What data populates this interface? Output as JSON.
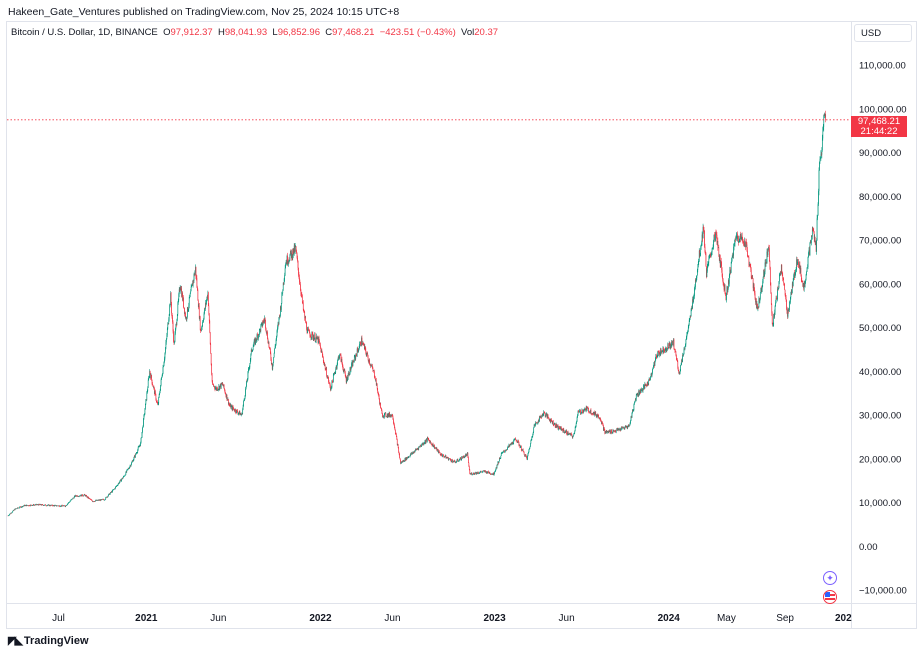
{
  "header": {
    "publisher": "Hakeen_Gate_Ventures published on TradingView.com, Nov 25, 2024 10:15 UTC+8"
  },
  "legend": {
    "symbol": "Bitcoin / U.S. Dollar, 1D, BINANCE",
    "o_label": "O",
    "o_value": "97,912.37",
    "h_label": "H",
    "h_value": "98,041.93",
    "l_label": "L",
    "l_value": "96,852.96",
    "c_label": "C",
    "c_value": "97,468.21",
    "change": "−423.51 (−0.43%)",
    "vol_label": "Vol",
    "vol_value": "20.37"
  },
  "currency_button": "USD",
  "last_price": {
    "value": "97,468.21",
    "countdown": "21:44:22"
  },
  "branding": {
    "logo_text": "TradingView"
  },
  "colors": {
    "up": "#089981",
    "down": "#f23645",
    "grid": "#e0e3eb",
    "price_line": "#f23645"
  },
  "chart_data": {
    "type": "candlestick",
    "ylim": [
      -15000,
      115000
    ],
    "y_ticks": [
      {
        "value": 110000,
        "label": "110,000.00"
      },
      {
        "value": 100000,
        "label": "100,000.00"
      },
      {
        "value": 90000,
        "label": "90,000.00"
      },
      {
        "value": 80000,
        "label": "80,000.00"
      },
      {
        "value": 70000,
        "label": "70,000.00"
      },
      {
        "value": 60000,
        "label": "60,000.00"
      },
      {
        "value": 50000,
        "label": "50,000.00"
      },
      {
        "value": 40000,
        "label": "40,000.00"
      },
      {
        "value": 30000,
        "label": "30,000.00"
      },
      {
        "value": 20000,
        "label": "20,000.00"
      },
      {
        "value": 10000,
        "label": "10,000.00"
      },
      {
        "value": 0,
        "label": "0.00"
      },
      {
        "value": -10000,
        "label": "−10,000.00"
      }
    ],
    "x_ticks": [
      {
        "date": "2020-07-01",
        "label": "Jul",
        "bold": false
      },
      {
        "date": "2021-01-01",
        "label": "2021",
        "bold": true
      },
      {
        "date": "2021-06-01",
        "label": "Jun",
        "bold": false
      },
      {
        "date": "2022-01-01",
        "label": "2022",
        "bold": true
      },
      {
        "date": "2022-06-01",
        "label": "Jun",
        "bold": false
      },
      {
        "date": "2023-01-01",
        "label": "2023",
        "bold": true
      },
      {
        "date": "2023-06-01",
        "label": "Jun",
        "bold": false
      },
      {
        "date": "2024-01-01",
        "label": "2024",
        "bold": true
      },
      {
        "date": "2024-05-01",
        "label": "May",
        "bold": false
      },
      {
        "date": "2024-09-01",
        "label": "Sep",
        "bold": false
      },
      {
        "date": "2025-01-01",
        "label": "202",
        "bold": true
      }
    ],
    "xlim": [
      "2020-03-15",
      "2025-01-15"
    ],
    "last_close": 97468.21,
    "series": [
      {
        "date": "2020-03-17",
        "close": 7000
      },
      {
        "date": "2020-04-01",
        "close": 8500
      },
      {
        "date": "2020-04-20",
        "close": 9300
      },
      {
        "date": "2020-05-20",
        "close": 9500
      },
      {
        "date": "2020-06-20",
        "close": 9300
      },
      {
        "date": "2020-07-15",
        "close": 9200
      },
      {
        "date": "2020-08-05",
        "close": 11500
      },
      {
        "date": "2020-08-25",
        "close": 11700
      },
      {
        "date": "2020-09-10",
        "close": 10300
      },
      {
        "date": "2020-10-05",
        "close": 10700
      },
      {
        "date": "2020-10-25",
        "close": 13000
      },
      {
        "date": "2020-11-15",
        "close": 16000
      },
      {
        "date": "2020-12-01",
        "close": 19000
      },
      {
        "date": "2020-12-20",
        "close": 23500
      },
      {
        "date": "2021-01-08",
        "close": 40000
      },
      {
        "date": "2021-01-25",
        "close": 32000
      },
      {
        "date": "2021-02-10",
        "close": 45000
      },
      {
        "date": "2021-02-21",
        "close": 57000
      },
      {
        "date": "2021-02-28",
        "close": 46000
      },
      {
        "date": "2021-03-13",
        "close": 60000
      },
      {
        "date": "2021-03-25",
        "close": 52000
      },
      {
        "date": "2021-04-14",
        "close": 63500
      },
      {
        "date": "2021-04-25",
        "close": 49000
      },
      {
        "date": "2021-05-10",
        "close": 58000
      },
      {
        "date": "2021-05-19",
        "close": 37000
      },
      {
        "date": "2021-05-28",
        "close": 36000
      },
      {
        "date": "2021-06-10",
        "close": 37000
      },
      {
        "date": "2021-06-25",
        "close": 32000
      },
      {
        "date": "2021-07-20",
        "close": 30000
      },
      {
        "date": "2021-08-10",
        "close": 45000
      },
      {
        "date": "2021-09-06",
        "close": 52000
      },
      {
        "date": "2021-09-22",
        "close": 41000
      },
      {
        "date": "2021-10-10",
        "close": 55000
      },
      {
        "date": "2021-10-20",
        "close": 65000
      },
      {
        "date": "2021-11-10",
        "close": 68000
      },
      {
        "date": "2021-11-26",
        "close": 54000
      },
      {
        "date": "2021-12-05",
        "close": 49000
      },
      {
        "date": "2021-12-28",
        "close": 47000
      },
      {
        "date": "2022-01-22",
        "close": 36000
      },
      {
        "date": "2022-02-10",
        "close": 44000
      },
      {
        "date": "2022-02-24",
        "close": 38000
      },
      {
        "date": "2022-03-28",
        "close": 47000
      },
      {
        "date": "2022-04-25",
        "close": 39000
      },
      {
        "date": "2022-05-10",
        "close": 30000
      },
      {
        "date": "2022-06-01",
        "close": 30000
      },
      {
        "date": "2022-06-18",
        "close": 19000
      },
      {
        "date": "2022-07-10",
        "close": 21000
      },
      {
        "date": "2022-08-14",
        "close": 24500
      },
      {
        "date": "2022-09-10",
        "close": 21000
      },
      {
        "date": "2022-10-10",
        "close": 19200
      },
      {
        "date": "2022-11-05",
        "close": 21000
      },
      {
        "date": "2022-11-10",
        "close": 16500
      },
      {
        "date": "2022-12-10",
        "close": 17100
      },
      {
        "date": "2022-12-30",
        "close": 16500
      },
      {
        "date": "2023-01-15",
        "close": 21000
      },
      {
        "date": "2023-02-15",
        "close": 24500
      },
      {
        "date": "2023-03-10",
        "close": 20000
      },
      {
        "date": "2023-03-25",
        "close": 27500
      },
      {
        "date": "2023-04-14",
        "close": 30500
      },
      {
        "date": "2023-05-10",
        "close": 27500
      },
      {
        "date": "2023-06-15",
        "close": 25000
      },
      {
        "date": "2023-06-25",
        "close": 30500
      },
      {
        "date": "2023-07-13",
        "close": 31400
      },
      {
        "date": "2023-08-10",
        "close": 29500
      },
      {
        "date": "2023-08-20",
        "close": 26000
      },
      {
        "date": "2023-09-15",
        "close": 26500
      },
      {
        "date": "2023-10-10",
        "close": 27500
      },
      {
        "date": "2023-10-25",
        "close": 34500
      },
      {
        "date": "2023-11-20",
        "close": 37500
      },
      {
        "date": "2023-12-08",
        "close": 44000
      },
      {
        "date": "2024-01-11",
        "close": 46500
      },
      {
        "date": "2024-01-23",
        "close": 39500
      },
      {
        "date": "2024-02-15",
        "close": 52000
      },
      {
        "date": "2024-02-28",
        "close": 62000
      },
      {
        "date": "2024-03-14",
        "close": 73000
      },
      {
        "date": "2024-03-20",
        "close": 62500
      },
      {
        "date": "2024-04-08",
        "close": 71500
      },
      {
        "date": "2024-04-30",
        "close": 57000
      },
      {
        "date": "2024-05-21",
        "close": 71000
      },
      {
        "date": "2024-06-10",
        "close": 69500
      },
      {
        "date": "2024-07-05",
        "close": 54000
      },
      {
        "date": "2024-07-29",
        "close": 69000
      },
      {
        "date": "2024-08-05",
        "close": 50000
      },
      {
        "date": "2024-08-24",
        "close": 64000
      },
      {
        "date": "2024-09-06",
        "close": 53000
      },
      {
        "date": "2024-09-27",
        "close": 66000
      },
      {
        "date": "2024-10-10",
        "close": 59000
      },
      {
        "date": "2024-10-29",
        "close": 72500
      },
      {
        "date": "2024-11-05",
        "close": 68000
      },
      {
        "date": "2024-11-12",
        "close": 88000
      },
      {
        "date": "2024-11-16",
        "close": 90000
      },
      {
        "date": "2024-11-22",
        "close": 98500
      },
      {
        "date": "2024-11-25",
        "close": 97468
      }
    ]
  }
}
